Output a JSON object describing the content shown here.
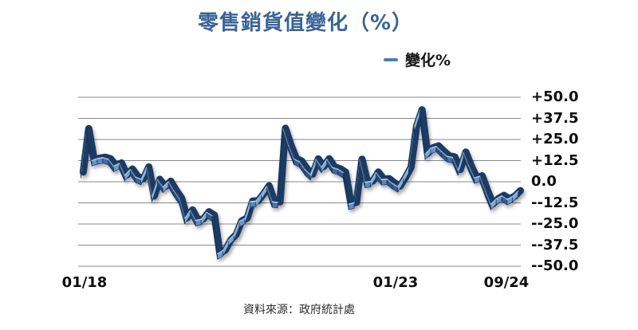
{
  "title": {
    "text": "零售銷貨值變化（%）",
    "color": "#3A6496"
  },
  "legend": {
    "label": "變化%",
    "marker_color": "#4A7EBB"
  },
  "source_note": "資料來源：政府統計處",
  "chart_data": {
    "type": "line",
    "style": "3d-ribbon",
    "title": "零售銷貨值變化（%）",
    "xlabel": "",
    "ylabel": "",
    "legend_position": "top-right",
    "grid": "horizontal-only",
    "ylim": [
      -50,
      50
    ],
    "y_tick_step": 12.5,
    "y_tick_labels": [
      "+50.0",
      "+37.5",
      "+25.0",
      "+12.5",
      "0.0",
      "--12.5",
      "--25.0",
      "--37.5",
      "--50.0"
    ],
    "x_tick_labels": [
      "01/18",
      "01/23",
      "09/24"
    ],
    "x_tick_indices": [
      0,
      60,
      80
    ],
    "x": [
      "01/18",
      "02/18",
      "03/18",
      "04/18",
      "05/18",
      "06/18",
      "07/18",
      "08/18",
      "09/18",
      "10/18",
      "11/18",
      "12/18",
      "01/19",
      "02/19",
      "03/19",
      "04/19",
      "05/19",
      "06/19",
      "07/19",
      "08/19",
      "09/19",
      "10/19",
      "11/19",
      "12/19",
      "01/20",
      "02/20",
      "03/20",
      "04/20",
      "05/20",
      "06/20",
      "07/20",
      "08/20",
      "09/20",
      "10/20",
      "11/20",
      "12/20",
      "01/21",
      "02/21",
      "03/21",
      "04/21",
      "05/21",
      "06/21",
      "07/21",
      "08/21",
      "09/21",
      "10/21",
      "11/21",
      "12/21",
      "01/22",
      "02/22",
      "03/22",
      "04/22",
      "05/22",
      "06/22",
      "07/22",
      "08/22",
      "09/22",
      "10/22",
      "11/22",
      "12/22",
      "01/23",
      "02/23",
      "03/23",
      "04/23",
      "05/23",
      "06/23",
      "07/23",
      "08/23",
      "09/23",
      "10/23",
      "11/23",
      "12/23",
      "01/24",
      "02/24",
      "03/24",
      "04/24",
      "05/24",
      "06/24",
      "07/24",
      "08/24",
      "09/24"
    ],
    "series": [
      {
        "name": "變化%",
        "values": [
          4.1,
          29.8,
          11.2,
          12.3,
          12.9,
          12.0,
          7.8,
          9.5,
          2.4,
          5.9,
          1.4,
          0.1,
          7.1,
          -10.1,
          -0.2,
          -4.5,
          -1.3,
          -6.7,
          -11.4,
          -23.0,
          -18.3,
          -24.3,
          -23.6,
          -19.4,
          -21.4,
          -44.0,
          -42.0,
          -36.1,
          -32.8,
          -24.8,
          -23.1,
          -13.1,
          -12.9,
          -8.8,
          -4.0,
          -13.2,
          -13.6,
          30.0,
          20.1,
          12.1,
          10.5,
          5.8,
          2.9,
          11.9,
          7.3,
          12.0,
          7.1,
          6.1,
          4.1,
          -14.6,
          -13.8,
          11.7,
          -1.7,
          -1.2,
          4.1,
          -0.1,
          0.2,
          -2.4,
          -4.2,
          1.1,
          7.0,
          31.3,
          40.9,
          15.0,
          18.4,
          19.6,
          16.5,
          13.7,
          13.0,
          5.6,
          15.9,
          7.8,
          0.9,
          1.9,
          -7.0,
          -14.7,
          -11.5,
          -9.7,
          -11.8,
          -10.1,
          -6.9
        ]
      }
    ],
    "colors": {
      "line_face": "#4F81BD",
      "line_shadow": "#1B3A63",
      "line_dark": "#16335A",
      "line_highlight": "#9DC3E6",
      "line_edge": "#14355F",
      "gridline": "#8A8A8A"
    },
    "source": "資料來源：政府統計處"
  }
}
